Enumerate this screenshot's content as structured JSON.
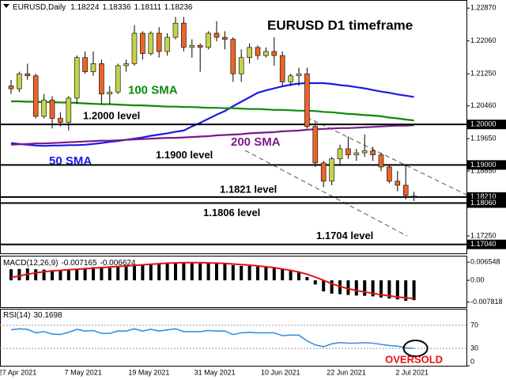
{
  "chart_data": [
    {
      "type": "candlestick",
      "title": "EURUSD D1 timeframe",
      "symbol": "EURUSD,Daily",
      "categories": [
        "27 Apr 2021",
        null,
        null,
        null,
        null,
        null,
        null,
        null,
        "7 May 2021",
        null,
        null,
        null,
        null,
        null,
        null,
        null,
        "19 May 2021",
        null,
        null,
        null,
        null,
        null,
        null,
        null,
        "31 May 2021",
        null,
        null,
        null,
        null,
        null,
        null,
        null,
        "10 Jun 2021",
        null,
        null,
        null,
        null,
        null,
        null,
        null,
        "22 Jun 2021",
        null,
        null,
        null,
        null,
        null,
        null,
        null,
        "2 Jul 2021",
        null
      ],
      "candles": {
        "open": [
          1.2095,
          1.2088,
          1.2125,
          1.212,
          1.202,
          1.206,
          1.2015,
          1.2005,
          1.2065,
          1.2165,
          1.213,
          1.215,
          1.2075,
          1.208,
          1.2145,
          1.215,
          1.2225,
          1.2175,
          1.2225,
          1.218,
          1.2215,
          1.225,
          1.219,
          1.2195,
          1.219,
          1.2225,
          1.2215,
          1.221,
          1.2125,
          1.2165,
          1.219,
          1.217,
          1.218,
          1.217,
          1.2105,
          1.212,
          1.2125,
          1.1995,
          1.1905,
          1.186,
          1.1915,
          1.194,
          1.1925,
          1.193,
          1.1935,
          1.1925,
          1.1895,
          1.186,
          1.185,
          1.18224
        ],
        "high": [
          1.211,
          1.213,
          1.215,
          1.2125,
          1.2075,
          1.207,
          1.203,
          1.207,
          1.217,
          1.218,
          1.218,
          1.216,
          1.2095,
          1.215,
          1.216,
          1.2245,
          1.223,
          1.223,
          1.224,
          1.2225,
          1.2265,
          1.2265,
          1.221,
          1.22,
          1.223,
          1.2255,
          1.223,
          1.2215,
          1.2185,
          1.22,
          1.2195,
          1.219,
          1.2215,
          1.218,
          1.2125,
          1.214,
          1.214,
          1.2005,
          1.191,
          1.192,
          1.195,
          1.197,
          1.194,
          1.1975,
          1.1945,
          1.193,
          1.19,
          1.1885,
          1.19,
          1.18336
        ],
        "low": [
          1.2075,
          1.208,
          1.211,
          1.2015,
          1.2015,
          1.199,
          1.1995,
          1.1985,
          1.205,
          1.2125,
          1.212,
          1.205,
          1.205,
          1.2075,
          1.213,
          1.2145,
          1.216,
          1.217,
          1.2165,
          1.217,
          1.221,
          1.218,
          1.2165,
          1.213,
          1.2185,
          1.2205,
          1.2185,
          1.2105,
          1.2105,
          1.215,
          1.216,
          1.2165,
          1.2145,
          1.2095,
          1.2095,
          1.2095,
          1.199,
          1.1895,
          1.1845,
          1.185,
          1.19,
          1.1915,
          1.191,
          1.192,
          1.191,
          1.1885,
          1.1855,
          1.1835,
          1.1815,
          1.18111
        ],
        "close": [
          1.2088,
          1.2125,
          1.212,
          1.202,
          1.206,
          1.2015,
          1.2005,
          1.2065,
          1.2165,
          1.213,
          1.215,
          1.2075,
          1.208,
          1.2145,
          1.215,
          1.2225,
          1.2175,
          1.2225,
          1.218,
          1.2215,
          1.225,
          1.219,
          1.2195,
          1.219,
          1.2225,
          1.2215,
          1.221,
          1.2125,
          1.2165,
          1.219,
          1.217,
          1.218,
          1.217,
          1.2105,
          1.212,
          1.2125,
          1.1995,
          1.1905,
          1.186,
          1.1915,
          1.194,
          1.1925,
          1.193,
          1.1935,
          1.1925,
          1.1895,
          1.186,
          1.185,
          1.1825,
          1.18236
        ]
      },
      "up_color": "#c5d24b",
      "down_color": "#ec6428",
      "series": [
        {
          "name": "50 SMA",
          "color": "#1a1ae6",
          "values": [
            1.1954,
            1.1952,
            1.195,
            1.1948,
            1.1947,
            1.1948,
            1.1948,
            1.1949,
            1.1949,
            1.195,
            1.1952,
            1.1954,
            1.1957,
            1.1959,
            1.1962,
            1.1965,
            1.1968,
            1.1972,
            1.1975,
            1.1978,
            1.1982,
            1.1985,
            1.1995,
            1.2004,
            1.2014,
            1.2024,
            1.2033,
            1.2045,
            1.2056,
            1.2067,
            1.2078,
            1.2084,
            1.2089,
            1.2094,
            1.2098,
            1.2101,
            1.2102,
            1.2102,
            1.2102,
            1.21,
            1.2097,
            1.2095,
            1.2092,
            1.2089,
            1.2085,
            1.2081,
            1.2078,
            1.2074,
            1.2071,
            1.2068
          ]
        },
        {
          "name": "100 SMA",
          "color": "#0b8a0b",
          "values": [
            1.2057,
            1.2057,
            1.2056,
            1.2056,
            1.2055,
            1.2055,
            1.2054,
            1.2054,
            1.2053,
            1.2052,
            1.2051,
            1.205,
            1.205,
            1.2049,
            1.2048,
            1.2047,
            1.2047,
            1.2046,
            1.2045,
            1.2044,
            1.2044,
            1.2043,
            1.2043,
            1.2042,
            1.2041,
            1.2041,
            1.204,
            1.204,
            1.2039,
            1.2038,
            1.2038,
            1.2037,
            1.2036,
            1.2036,
            1.2035,
            1.2034,
            1.2034,
            1.2033,
            1.2031,
            1.203,
            1.2028,
            1.2026,
            1.2025,
            1.2023,
            1.2022,
            1.202,
            1.2017,
            1.2015,
            1.2012,
            1.201
          ]
        },
        {
          "name": "200 SMA",
          "color": "#7b1a8e",
          "values": [
            1.195,
            1.1951,
            1.1952,
            1.1953,
            1.1953,
            1.1954,
            1.1955,
            1.1956,
            1.1957,
            1.1958,
            1.1959,
            1.196,
            1.196,
            1.1961,
            1.1962,
            1.1963,
            1.1964,
            1.1965,
            1.1966,
            1.1967,
            1.1967,
            1.1968,
            1.1969,
            1.197,
            1.1971,
            1.1973,
            1.1974,
            1.1975,
            1.1976,
            1.1978,
            1.1979,
            1.198,
            1.1981,
            1.1983,
            1.1984,
            1.1985,
            1.1987,
            1.1988,
            1.1989,
            1.199,
            1.1991,
            1.1991,
            1.1992,
            1.1993,
            1.1994,
            1.1995,
            1.1996,
            1.1997,
            1.1997,
            1.1998
          ]
        }
      ],
      "levels": [
        {
          "value": 1.2,
          "label": "1.20000",
          "text": "1.2000 level"
        },
        {
          "value": 1.19,
          "label": "1.19000",
          "text": "1.1900 level"
        },
        {
          "value": 1.1821,
          "label": "1.18210",
          "text": "1.1821 level"
        },
        {
          "value": 1.1806,
          "label": "1.18060",
          "text": "1.1806 level"
        },
        {
          "value": 1.1704,
          "label": "1.17040",
          "text": "1.1704 level"
        }
      ],
      "ylim": [
        1.1682,
        1.2307
      ],
      "yticks": [
        {
          "value": 1.2287,
          "label": "1.22870"
        },
        {
          "value": 1.2206,
          "label": "1.22060"
        },
        {
          "value": 1.2125,
          "label": "1.21250"
        },
        {
          "value": 1.2046,
          "label": "1.20460"
        },
        {
          "value": 1.1965,
          "label": "1.19650"
        },
        {
          "value": 1.1885,
          "label": "1.18850"
        },
        {
          "value": 1.1725,
          "label": "1.17250"
        }
      ]
    },
    {
      "type": "macd",
      "title": "MACD(12,26,9)",
      "histogram": [
        0.004,
        0.0041,
        0.0043,
        0.004,
        0.0039,
        0.0037,
        0.0035,
        0.0036,
        0.0042,
        0.0045,
        0.0048,
        0.0046,
        0.0045,
        0.0048,
        0.005,
        0.0056,
        0.0057,
        0.006,
        0.006,
        0.0061,
        0.0064,
        0.0063,
        0.0062,
        0.0061,
        0.0062,
        0.0063,
        0.0062,
        0.0055,
        0.0052,
        0.0052,
        0.005,
        0.0049,
        0.0047,
        0.004,
        0.0036,
        0.0032,
        0.0012,
        -0.0015,
        -0.004,
        -0.0048,
        -0.005,
        -0.0053,
        -0.0055,
        -0.0056,
        -0.0058,
        -0.0062,
        -0.0066,
        -0.0069,
        -0.0074,
        -0.007165
      ],
      "signal": [
        0.001,
        0.0016,
        0.0022,
        0.0027,
        0.0031,
        0.0034,
        0.0036,
        0.0038,
        0.004,
        0.0042,
        0.0044,
        0.0046,
        0.0048,
        0.005,
        0.0052,
        0.0054,
        0.0056,
        0.0058,
        0.006,
        0.0062,
        0.0063,
        0.0064,
        0.0064,
        0.0064,
        0.0063,
        0.0062,
        0.0061,
        0.0059,
        0.0057,
        0.0055,
        0.0052,
        0.0049,
        0.0046,
        0.0041,
        0.0036,
        0.003,
        0.0022,
        0.0012,
        0.0,
        -0.0012,
        -0.0022,
        -0.003,
        -0.0037,
        -0.0042,
        -0.0047,
        -0.0052,
        -0.0056,
        -0.006,
        -0.0063,
        -0.006624
      ],
      "histogram_color": "#000000",
      "signal_color": "#e01414",
      "ylim": [
        -0.0097,
        0.0089
      ],
      "yticks": [
        0.006548,
        {
          "value": 0,
          "label": "0.00"
        },
        -0.007818
      ]
    },
    {
      "type": "line",
      "title": "RSI(14)",
      "color": "#3a8fe0",
      "values": [
        62,
        64,
        63,
        57,
        59,
        55,
        54,
        58,
        63,
        60,
        61,
        56,
        56,
        60,
        60,
        64,
        60,
        63,
        60,
        62,
        64,
        59,
        59,
        59,
        61,
        60,
        60,
        54,
        57,
        58,
        57,
        57,
        57,
        52,
        53,
        53,
        43,
        36,
        33,
        38,
        40,
        39,
        39,
        40,
        39,
        37,
        35,
        34,
        31,
        30.1698
      ],
      "ylim": [
        0,
        100
      ],
      "yticks": [
        70,
        30,
        0
      ],
      "annotation": "OVERSOLD"
    }
  ]
}
